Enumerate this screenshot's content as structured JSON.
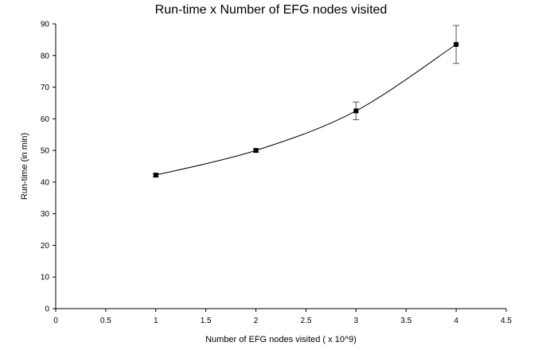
{
  "chart_data": {
    "type": "line",
    "title": "Run-time x Number of EFG nodes visited",
    "xlabel": "Number of EFG nodes visited ( x 10^9)",
    "ylabel": "Run-time (in min)",
    "xlim": [
      0,
      4.5
    ],
    "ylim": [
      0,
      90
    ],
    "x_ticks": [
      "0",
      "0.5",
      "1",
      "1.5",
      "2",
      "2.5",
      "3",
      "3.5",
      "4",
      "4.5"
    ],
    "y_ticks": [
      "0",
      "10",
      "20",
      "30",
      "40",
      "50",
      "60",
      "70",
      "80",
      "90"
    ],
    "grid": false,
    "legend": "none",
    "series": [
      {
        "x": [
          1,
          2,
          3,
          4
        ],
        "y": [
          42.2,
          50.0,
          62.5,
          83.5
        ],
        "error": [
          0.5,
          0.5,
          2.8,
          6.0
        ],
        "smooth": true,
        "color": "#000000"
      }
    ]
  }
}
